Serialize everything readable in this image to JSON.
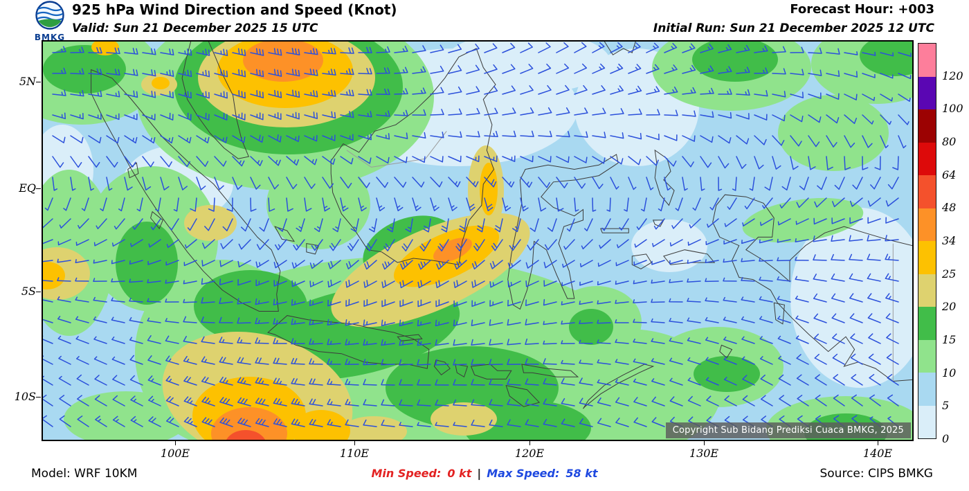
{
  "header": {
    "logo_text": "BMKG",
    "title": "925 hPa Wind Direction and Speed (Knot)",
    "valid_line": "Valid: Sun 21 December 2025 15 UTC",
    "forecast_hour": "Forecast Hour: +003",
    "initial_run": "Initial Run: Sun 21 December 2025 12 UTC"
  },
  "map": {
    "y_axis_labels": [
      "5N",
      "EQ",
      "5S",
      "10S"
    ],
    "x_axis_labels": [
      "100E",
      "110E",
      "120E",
      "130E",
      "140E"
    ],
    "copyright": "Copyright Sub Bidang Prediksi Cuaca BMKG, 2025",
    "barb_color": "#2b50db"
  },
  "legend": {
    "tick_labels": [
      "120",
      "100",
      "80",
      "64",
      "48",
      "34",
      "25",
      "20",
      "15",
      "10",
      "5",
      "0"
    ],
    "colors_ascending": [
      "#daeef9",
      "#a9d9f1",
      "#90e38c",
      "#41bd49",
      "#ded26f",
      "#fdc101",
      "#fd9127",
      "#f4512c",
      "#dd0a0a",
      "#9c0202",
      "#5a06b3",
      "#fd7e9b"
    ]
  },
  "footer": {
    "model": "Model: WRF 10KM",
    "min_speed_label": "Min Speed:",
    "min_speed_value": "0 kt",
    "separator": "|",
    "max_speed_label": "Max Speed:",
    "max_speed_value": "58 kt",
    "source": "Source: CIPS BMKG"
  }
}
